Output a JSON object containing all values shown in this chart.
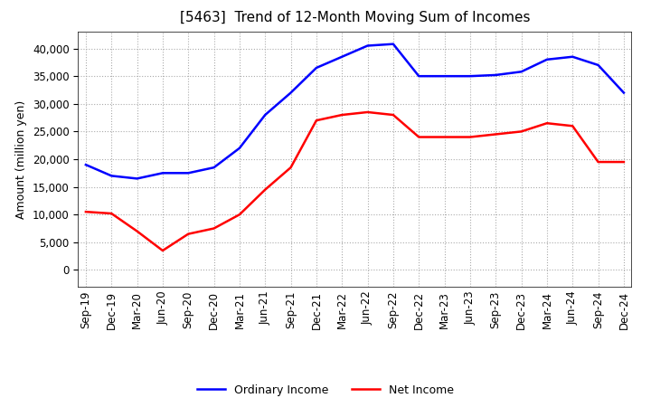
{
  "title": "[5463]  Trend of 12-Month Moving Sum of Incomes",
  "ylabel": "Amount (million yen)",
  "xlabels": [
    "Sep-19",
    "Dec-19",
    "Mar-20",
    "Jun-20",
    "Sep-20",
    "Dec-20",
    "Mar-21",
    "Jun-21",
    "Sep-21",
    "Dec-21",
    "Mar-22",
    "Jun-22",
    "Sep-22",
    "Dec-22",
    "Mar-23",
    "Jun-23",
    "Sep-23",
    "Dec-23",
    "Mar-24",
    "Jun-24",
    "Sep-24",
    "Dec-24"
  ],
  "ordinary_income": [
    19000,
    17000,
    16500,
    17500,
    17500,
    18500,
    22000,
    28000,
    32000,
    36500,
    38500,
    40500,
    40800,
    35000,
    35000,
    35000,
    35200,
    35800,
    38000,
    38500,
    37000,
    32000
  ],
  "net_income": [
    10500,
    10200,
    7000,
    3500,
    6500,
    7500,
    10000,
    14500,
    18500,
    27000,
    28000,
    28500,
    28000,
    24000,
    24000,
    24000,
    24500,
    25000,
    26500,
    26000,
    19500,
    19500
  ],
  "ordinary_color": "#0000ff",
  "net_color": "#ff0000",
  "ylim_min": -3000,
  "ylim_max": 43000,
  "yticks": [
    0,
    5000,
    10000,
    15000,
    20000,
    25000,
    30000,
    35000,
    40000
  ],
  "background_color": "#ffffff",
  "grid_color": "#aaaaaa",
  "title_fontsize": 11,
  "label_fontsize": 9,
  "tick_fontsize": 8.5,
  "legend_fontsize": 9
}
